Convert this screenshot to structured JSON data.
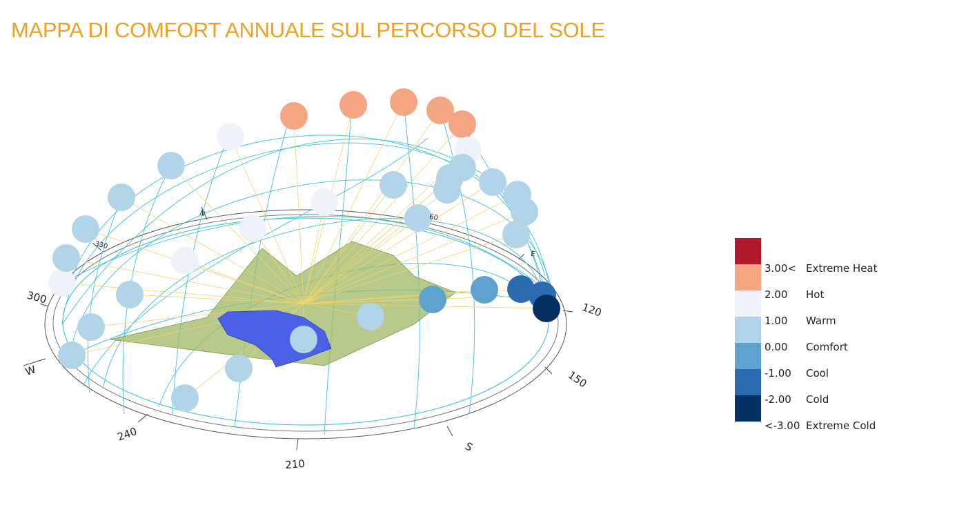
{
  "title": "MAPPA DI COMFORT ANNUALE SUL PERCORSO DEL SOLE",
  "compass": [
    "N",
    "330",
    "300",
    "W",
    "240",
    "210",
    "S",
    "150",
    "120",
    "E",
    "60"
  ],
  "legend": {
    "colors": [
      "#b2182b",
      "#f4a582",
      "#eef3fa",
      "#b2d4e9",
      "#5ea3d0",
      "#2b6bb0",
      "#053061"
    ],
    "ticks": [
      "3.00<",
      "2.00",
      "1.00",
      "0.00",
      "-1.00",
      "-2.00",
      "<-3.00"
    ],
    "labels": [
      "Extreme Heat",
      "Hot",
      "Warm",
      "Comfort",
      "Cool",
      "Cold",
      "Extreme Cold"
    ]
  }
}
